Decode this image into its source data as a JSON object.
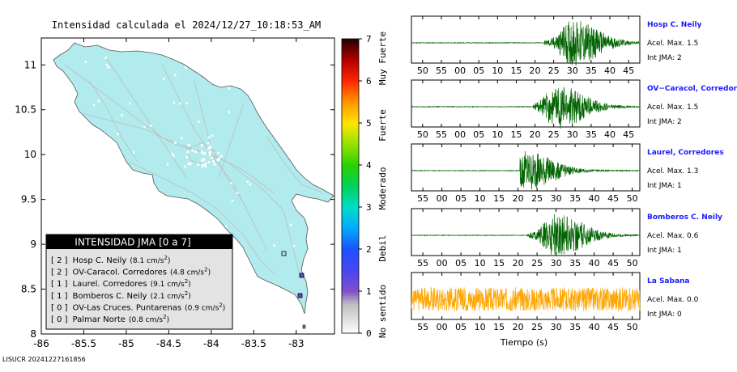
{
  "title": "Intensidad calculada el 2024/12/27_10:18:53_AM",
  "footer_id": "LISUCR 20241227161856",
  "map": {
    "x_ticks": [
      "-86",
      "-85.5",
      "-85",
      "-84.5",
      "-84",
      "-83.5",
      "-83"
    ],
    "y_ticks": [
      "11",
      "10.5",
      "10",
      "9.5",
      "9",
      "8.5",
      "8"
    ],
    "xlim": [
      -86,
      -82.55
    ],
    "ylim": [
      8,
      11.3
    ],
    "legend": {
      "title": "INTENSIDAD JMA [0 a 7]",
      "rows": [
        {
          "jma": "[ 2 ]",
          "name": "Hosp C. Neily",
          "value": "(8.1 cm/s",
          "sup": "2",
          "end": ")"
        },
        {
          "jma": "[ 2 ]",
          "name": "OV-Caracol. Corredores",
          "value": "(4.8 cm/s",
          "sup": "2",
          "end": ")"
        },
        {
          "jma": "[ 1 ]",
          "name": "Laurel. Corredores",
          "value": "(9.1 cm/s",
          "sup": "2",
          "end": ")"
        },
        {
          "jma": "[ 1 ]",
          "name": "Bomberos C. Neily",
          "value": "(2.1 cm/s",
          "sup": "2",
          "end": ")"
        },
        {
          "jma": "[ 0 ]",
          "name": "OV-Las Cruces. Puntarenas",
          "value": "(0.9 cm/s",
          "sup": "2",
          "end": ")"
        },
        {
          "jma": "[ 0 ]",
          "name": "Palmar Norte",
          "value": "(0.8 cm/s",
          "sup": "2",
          "end": ")"
        }
      ]
    }
  },
  "colorbar": {
    "ticks": [
      "0",
      "1",
      "2",
      "3",
      "4",
      "5",
      "6",
      "7"
    ],
    "labels": [
      "No sentido",
      "Debil",
      "Moderado",
      "Fuerte",
      "Muy Fuerte"
    ],
    "range": [
      0,
      7
    ]
  },
  "chart_data": {
    "type": "line",
    "xlabel": "Tiempo (s)",
    "traces": [
      {
        "station": "Hosp C. Neily",
        "accel": "Acel. Max. 1.5",
        "jma": "Int JMA: 2",
        "color": "#006400",
        "onset": 22.5,
        "peak": 30,
        "amp": 1.0,
        "ticks": [
          "50",
          "55",
          "00",
          "05",
          "10",
          "15",
          "20",
          "25",
          "30",
          "35",
          "40",
          "45"
        ],
        "ticks_start": -10,
        "xmax": 48
      },
      {
        "station": "OV−Caracol, Corredores",
        "accel": "Acel. Max. 1.5",
        "jma": "Int JMA: 2",
        "color": "#006400",
        "onset": 19.5,
        "peak": 26,
        "amp": 0.95,
        "ticks": [
          "50",
          "55",
          "00",
          "05",
          "10",
          "15",
          "20",
          "25",
          "30",
          "35",
          "40",
          "45"
        ],
        "ticks_start": -10,
        "xmax": 48
      },
      {
        "station": "Laurel, Corredores",
        "accel": "Acel. Max. 1.3",
        "jma": "Int JMA: 1",
        "color": "#006400",
        "onset": 20.5,
        "peak": 22,
        "amp": 0.85,
        "ticks": [
          "55",
          "00",
          "05",
          "10",
          "15",
          "20",
          "25",
          "30",
          "35",
          "40",
          "45",
          "50"
        ],
        "ticks_start": -5,
        "xmax": 52
      },
      {
        "station": "Bomberos C. Neily",
        "accel": "Acel. Max. 0.6",
        "jma": "Int JMA: 1",
        "color": "#006400",
        "onset": 22.5,
        "peak": 30,
        "amp": 0.95,
        "ticks": [
          "55",
          "00",
          "05",
          "10",
          "15",
          "20",
          "25",
          "30",
          "35",
          "40",
          "45",
          "50"
        ],
        "ticks_start": -5,
        "xmax": 52
      },
      {
        "station": "La Sabana",
        "accel": "Acel. Max. 0.0",
        "jma": "Int JMA: 0",
        "color": "#FFA500",
        "onset": -8,
        "peak": null,
        "amp": 0.55,
        "ticks": [
          "55",
          "00",
          "05",
          "10",
          "15",
          "20",
          "25",
          "30",
          "35",
          "40",
          "45",
          "50"
        ],
        "ticks_start": -5,
        "xmax": 52
      }
    ]
  }
}
